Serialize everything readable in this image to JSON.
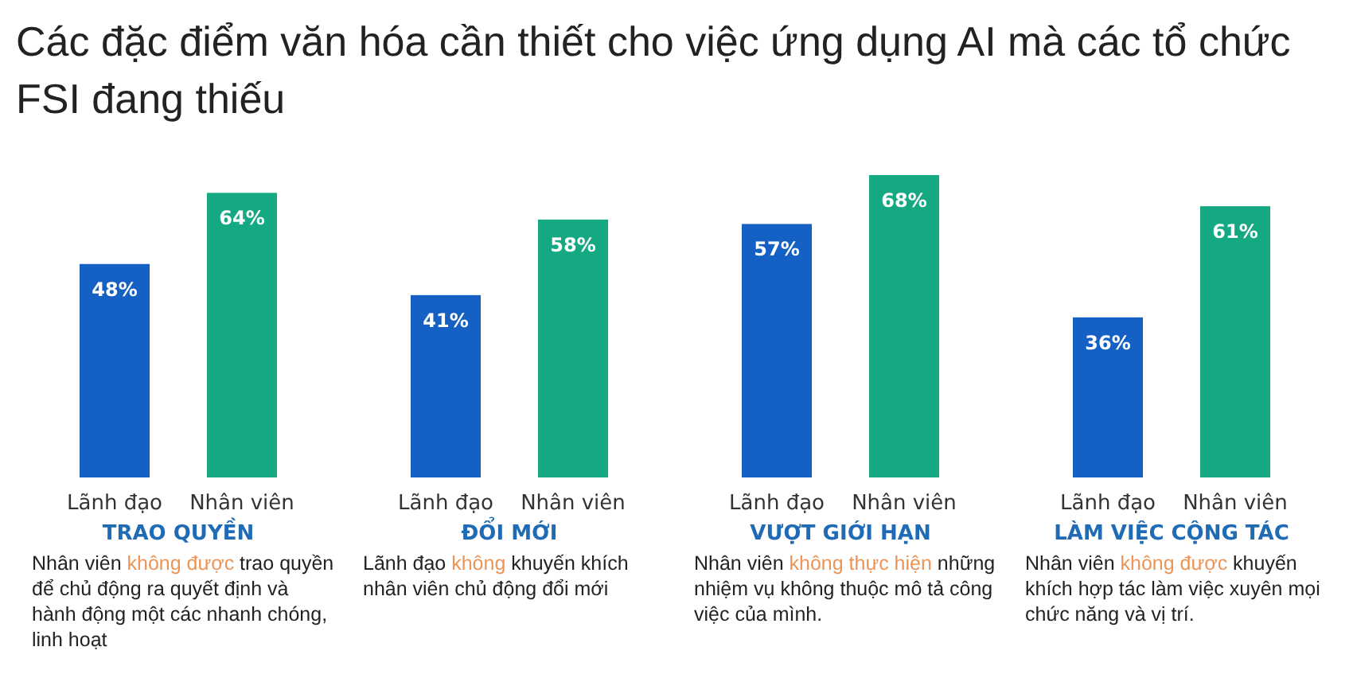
{
  "chart_data": [
    {
      "type": "bar",
      "title": "Các đặc điểm văn hóa cần thiết cho việc ứng dụng AI mà các tổ chức FSI đang thiếu",
      "categories": [
        "Lãnh đạo",
        "Nhân viên"
      ],
      "values": [
        48,
        64
      ],
      "colors": [
        "#1560c4",
        "#14a982"
      ],
      "value_labels": [
        "48%",
        "64%"
      ],
      "xlabel": "TRAO QUYỀN",
      "annotations": [
        "Nhân viên ",
        "không được",
        " trao quyền để chủ động ra quyết định và hành động một các nhanh chóng, linh hoạt"
      ]
    },
    {
      "type": "bar",
      "categories": [
        "Lãnh đạo",
        "Nhân viên"
      ],
      "values": [
        41,
        58
      ],
      "colors": [
        "#1560c4",
        "#14a982"
      ],
      "value_labels": [
        "41%",
        "58%"
      ],
      "xlabel": "ĐỔI MỚI",
      "annotations": [
        "Lãnh đạo ",
        "không",
        " khuyến khích nhân viên chủ động đổi mới"
      ]
    },
    {
      "type": "bar",
      "categories": [
        "Lãnh đạo",
        "Nhân viên"
      ],
      "values": [
        57,
        68
      ],
      "colors": [
        "#1560c4",
        "#14a982"
      ],
      "value_labels": [
        "57%",
        "68%"
      ],
      "xlabel": "VƯỢT GIỚI HẠN",
      "annotations": [
        "Nhân viên ",
        "không thực hiện",
        " những nhiệm vụ không thuộc mô tả công việc của mình."
      ]
    },
    {
      "type": "bar",
      "categories": [
        "Lãnh đạo",
        "Nhân viên"
      ],
      "values": [
        36,
        61
      ],
      "colors": [
        "#1560c4",
        "#14a982"
      ],
      "value_labels": [
        "36%",
        "61%"
      ],
      "xlabel": "LÀM VIỆC CỘNG TÁC",
      "annotations": [
        "Nhân viên ",
        "không được",
        " khuyến khích hợp tác làm việc xuyên mọi chức năng và vị trí."
      ]
    }
  ]
}
